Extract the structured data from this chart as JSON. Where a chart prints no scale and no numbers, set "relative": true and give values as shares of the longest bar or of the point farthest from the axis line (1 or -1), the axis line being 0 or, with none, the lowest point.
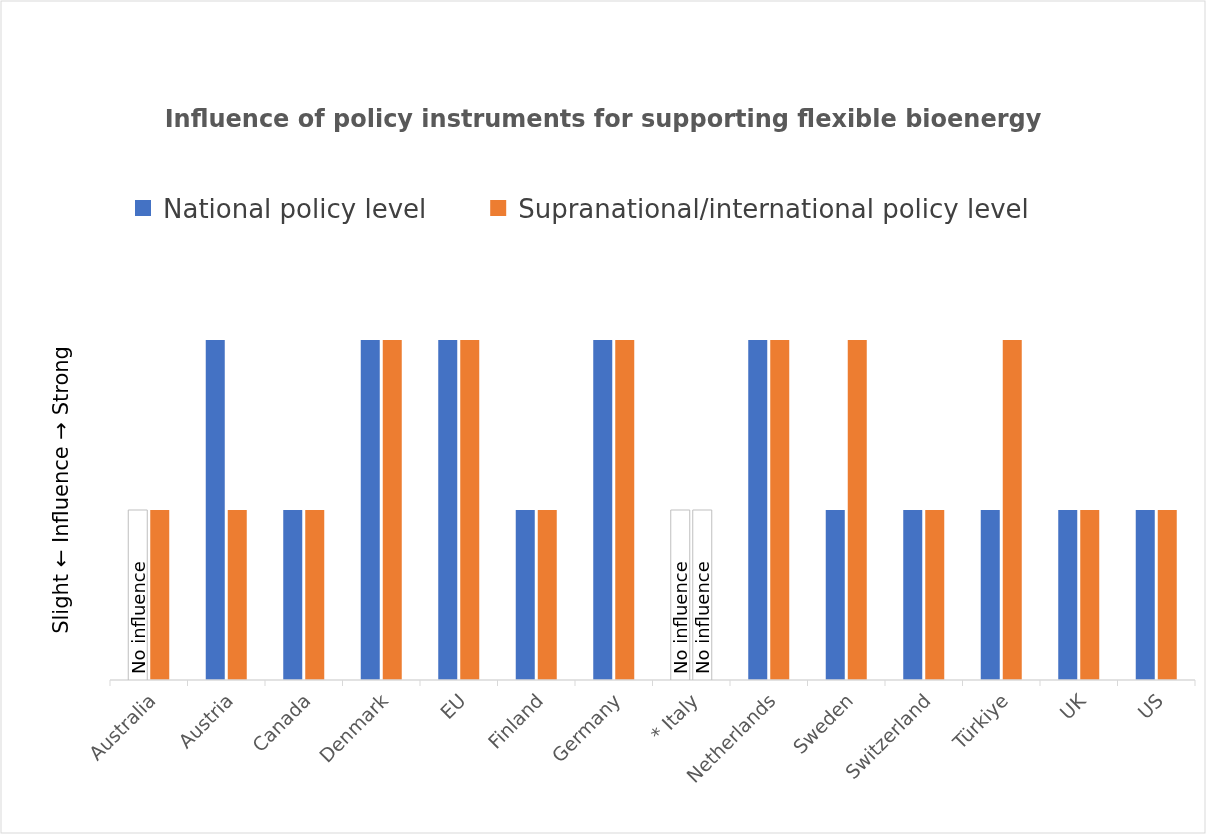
{
  "chart_data": {
    "type": "bar",
    "title": "Influence of policy instruments for supporting flexible bioenergy",
    "ylabel": "Slight  ←   Influence   →  Strong",
    "relative": true,
    "legend": "top",
    "categories": [
      "Australia",
      "Austria",
      "Canada",
      "Denmark",
      "EU",
      "Finland",
      "Germany",
      "* Italy",
      "Netherlands",
      "Sweden",
      "Switzerland",
      "Türkiye",
      "UK",
      "US"
    ],
    "series": [
      {
        "name": "National policy level",
        "color": "#4472c4",
        "values": [
          null,
          1,
          0.5,
          1,
          1,
          0.5,
          1,
          null,
          1,
          0.5,
          0.5,
          0.5,
          0.5,
          0.5
        ]
      },
      {
        "name": "Supranational/international policy level",
        "color": "#ed7d31",
        "values": [
          0.5,
          0.5,
          0.5,
          1,
          1,
          0.5,
          1,
          null,
          1,
          1,
          0.5,
          1,
          0.5,
          0.5
        ]
      }
    ],
    "annotations": [
      "No influence",
      "No influence",
      "No influence"
    ]
  }
}
